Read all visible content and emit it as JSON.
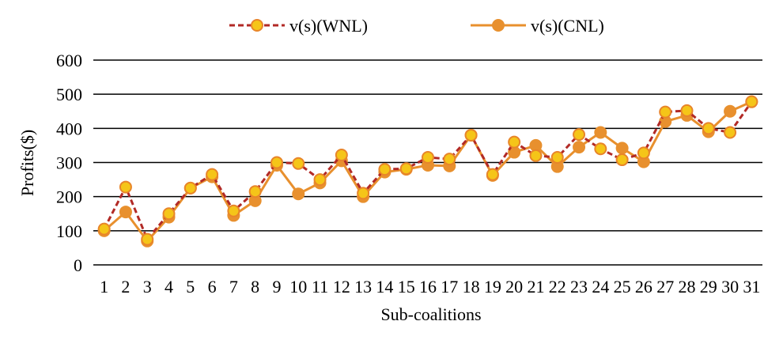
{
  "chart_data": {
    "type": "line",
    "title": "",
    "xlabel": "Sub-coalitions",
    "ylabel": "Profits($)",
    "ylim": [
      0,
      600
    ],
    "yticks": [
      0,
      100,
      200,
      300,
      400,
      500,
      600
    ],
    "grid": true,
    "legend_position": "top-center",
    "categories": [
      "1",
      "2",
      "3",
      "4",
      "5",
      "6",
      "7",
      "8",
      "9",
      "10",
      "11",
      "12",
      "13",
      "14",
      "15",
      "16",
      "17",
      "18",
      "19",
      "20",
      "21",
      "22",
      "23",
      "24",
      "25",
      "26",
      "27",
      "28",
      "29",
      "30",
      "31"
    ],
    "series": [
      {
        "name": "v(s)(WNL)",
        "line_color": "#b22a26",
        "marker_color": "#f5c518",
        "marker_edge": "#e8852a",
        "dashed": true,
        "values": [
          105,
          228,
          75,
          150,
          225,
          265,
          158,
          215,
          300,
          297,
          250,
          322,
          210,
          280,
          282,
          315,
          310,
          380,
          265,
          360,
          320,
          315,
          382,
          340,
          308,
          328,
          448,
          452,
          400,
          388,
          478
        ]
      },
      {
        "name": "v(s)(CNL)",
        "line_color": "#e8902e",
        "marker_color": "#e8902e",
        "marker_edge": "#e8902e",
        "dashed": false,
        "values": [
          100,
          155,
          70,
          140,
          225,
          258,
          145,
          188,
          292,
          208,
          240,
          305,
          200,
          272,
          280,
          292,
          290,
          380,
          262,
          330,
          350,
          288,
          345,
          388,
          342,
          302,
          420,
          438,
          390,
          450,
          478
        ]
      }
    ]
  }
}
